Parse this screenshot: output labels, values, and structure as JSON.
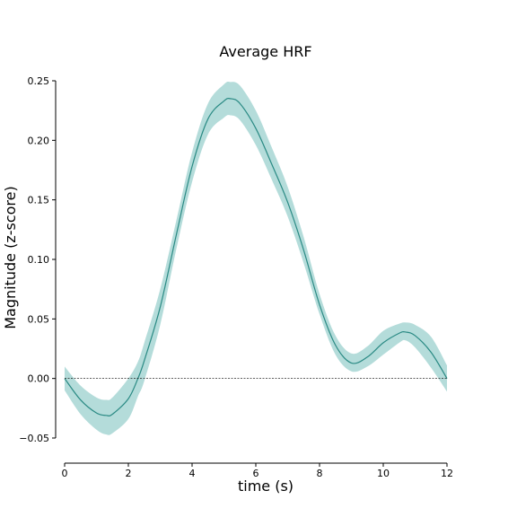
{
  "chart_data": {
    "type": "line",
    "title": "Average HRF",
    "xlabel": "time (s)",
    "ylabel": "Magnitude (z-score)",
    "xlim": [
      0,
      12
    ],
    "ylim": [
      -0.05,
      0.25
    ],
    "xticks": [
      0,
      2,
      4,
      6,
      8,
      10,
      12
    ],
    "xtick_labels": [
      "0",
      "2",
      "4",
      "6",
      "8",
      "10",
      "12"
    ],
    "yticks": [
      -0.05,
      0.0,
      0.05,
      0.1,
      0.15,
      0.2,
      0.25
    ],
    "ytick_labels": [
      "−0.05",
      "0.00",
      "0.05",
      "0.10",
      "0.15",
      "0.20",
      "0.25"
    ],
    "reference_line": {
      "y": 0,
      "style": "dotted"
    },
    "grid": false,
    "colors": {
      "line": "#2a8a84",
      "band": "#a7d6d3"
    },
    "series": [
      {
        "x": [
          0,
          0.5,
          1.0,
          1.3,
          1.5,
          2.0,
          2.3,
          2.5,
          3.0,
          3.5,
          4.0,
          4.5,
          5.0,
          5.2,
          5.5,
          6.0,
          6.5,
          7.0,
          7.5,
          8.0,
          8.5,
          9.0,
          9.5,
          10.0,
          10.5,
          10.7,
          11.0,
          11.5,
          12.0
        ],
        "y": [
          0.0,
          -0.018,
          -0.029,
          -0.031,
          -0.03,
          -0.017,
          0.0,
          0.015,
          0.06,
          0.12,
          0.178,
          0.218,
          0.233,
          0.235,
          0.231,
          0.21,
          0.18,
          0.148,
          0.108,
          0.062,
          0.028,
          0.013,
          0.018,
          0.03,
          0.038,
          0.039,
          0.036,
          0.022,
          0.0
        ],
        "lower": [
          -0.01,
          -0.03,
          -0.043,
          -0.047,
          -0.046,
          -0.034,
          -0.015,
          -0.002,
          0.045,
          0.108,
          0.165,
          0.205,
          0.219,
          0.221,
          0.217,
          0.196,
          0.167,
          0.136,
          0.097,
          0.054,
          0.02,
          0.006,
          0.01,
          0.02,
          0.03,
          0.032,
          0.026,
          0.009,
          -0.011
        ],
        "upper": [
          0.01,
          -0.006,
          -0.016,
          -0.018,
          -0.016,
          0.0,
          0.014,
          0.03,
          0.075,
          0.132,
          0.19,
          0.231,
          0.247,
          0.249,
          0.246,
          0.225,
          0.194,
          0.161,
          0.119,
          0.071,
          0.036,
          0.021,
          0.027,
          0.04,
          0.046,
          0.047,
          0.045,
          0.035,
          0.011
        ]
      }
    ]
  }
}
